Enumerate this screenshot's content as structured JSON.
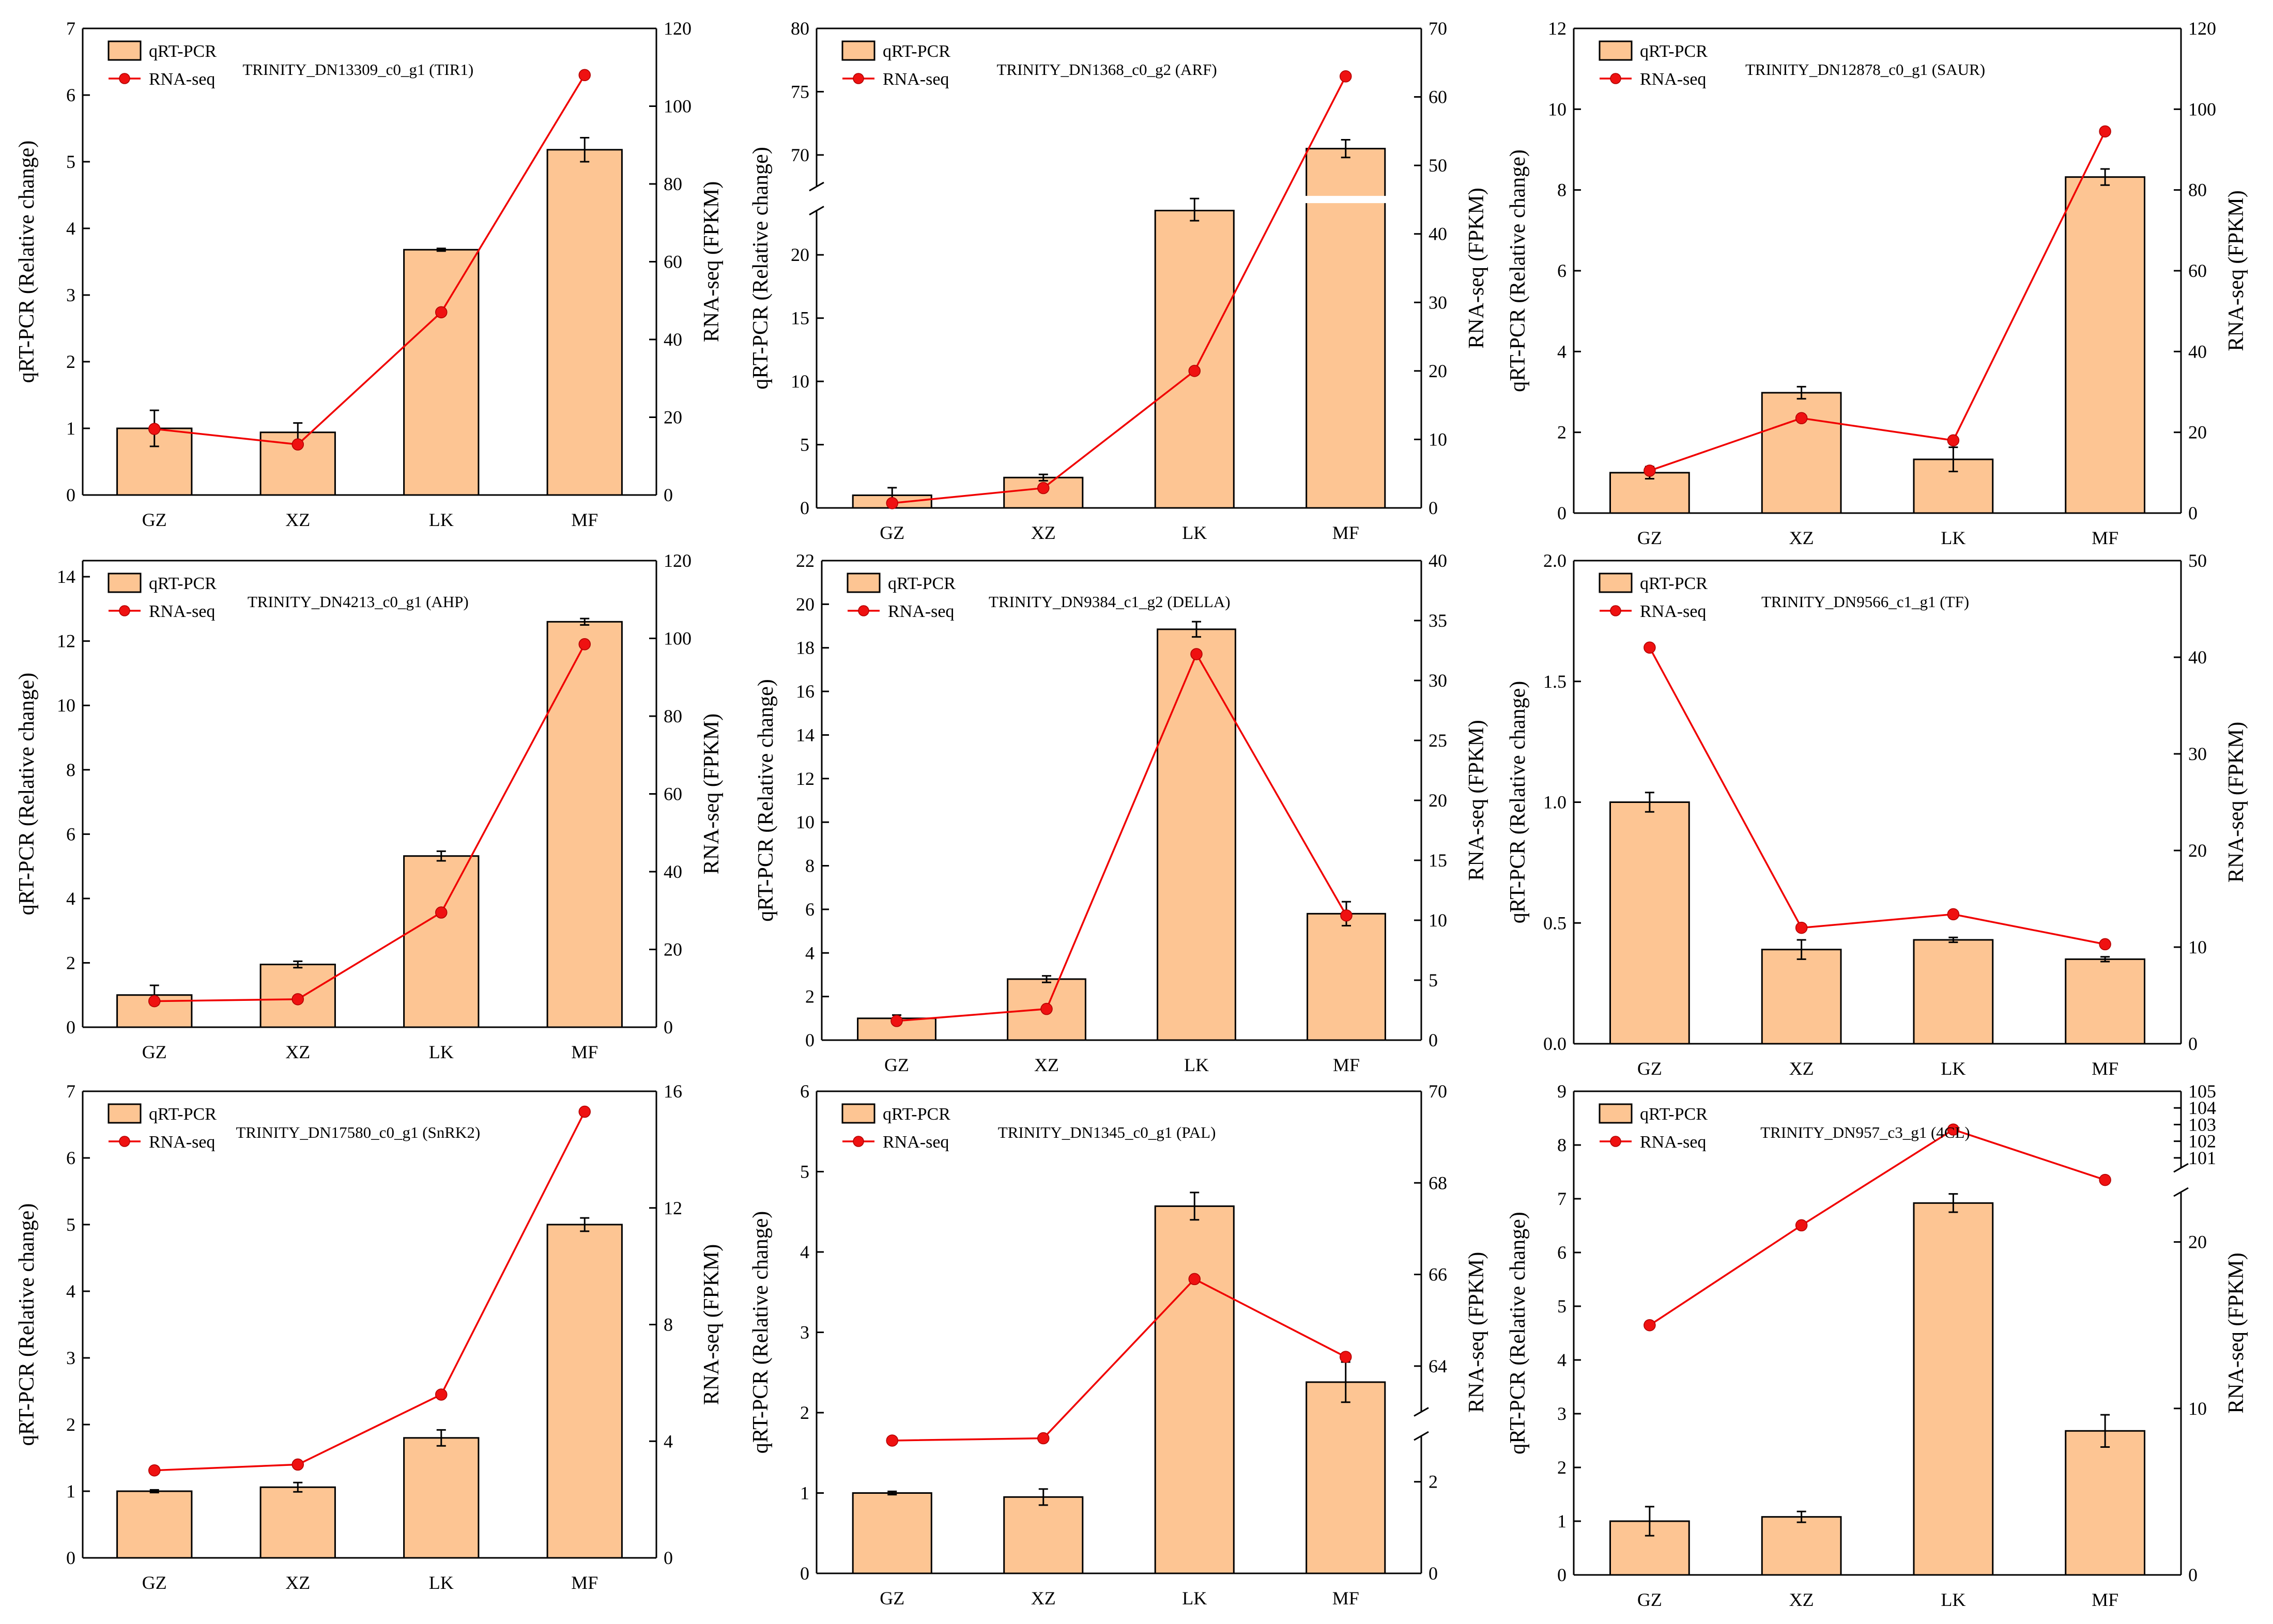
{
  "figure": {
    "legend_bar": "qRT-PCR",
    "legend_line": "RNA-seq"
  },
  "chart_data": [
    {
      "type": "bar+line",
      "title": "TRINITY_DN13309_c0_g1 (TIR1)",
      "categories": [
        "GZ",
        "XZ",
        "LK",
        "MF"
      ],
      "ylabel": "qRT-PCR (Relative change)",
      "y2label": "RNA-seq (FPKM)",
      "ylim": [
        0,
        7
      ],
      "yticks": [
        0,
        1,
        2,
        3,
        4,
        5,
        6,
        7
      ],
      "y2lim": [
        0,
        120
      ],
      "y2ticks": [
        0,
        20,
        40,
        60,
        80,
        100,
        120
      ],
      "series": [
        {
          "name": "qRT-PCR",
          "axis": "left",
          "kind": "bar",
          "values": [
            1.0,
            0.94,
            3.68,
            5.18
          ],
          "errors": [
            0.27,
            0.14,
            0.02,
            0.18
          ]
        },
        {
          "name": "RNA-seq",
          "axis": "right",
          "kind": "line",
          "values": [
            17,
            13,
            47,
            108
          ]
        }
      ]
    },
    {
      "type": "bar+line",
      "title": "TRINITY_DN1368_c0_g2 (ARF)",
      "categories": [
        "GZ",
        "XZ",
        "LK",
        "MF"
      ],
      "ylabel": "qRT-PCR (Relative change)",
      "y2label": "RNA-seq (FPKM)",
      "ylim": [
        0,
        80
      ],
      "yticks": [
        0,
        5,
        10,
        15,
        20,
        70,
        75,
        80
      ],
      "y_break": [
        23.5,
        67.5
      ],
      "y2lim": [
        0,
        70
      ],
      "y2ticks": [
        0,
        10,
        20,
        30,
        40,
        50,
        60,
        70
      ],
      "series": [
        {
          "name": "qRT-PCR",
          "axis": "left",
          "kind": "bar",
          "values": [
            1.0,
            2.4,
            23.5,
            70.5
          ],
          "errors": [
            0.6,
            0.25,
            0.8,
            0.7
          ]
        },
        {
          "name": "RNA-seq",
          "axis": "right",
          "kind": "line",
          "values": [
            0.7,
            2.9,
            20,
            63
          ]
        }
      ]
    },
    {
      "type": "bar+line",
      "title": "TRINITY_DN12878_c0_g1 (SAUR)",
      "categories": [
        "GZ",
        "XZ",
        "LK",
        "MF"
      ],
      "ylabel": "qRT-PCR (Relative change)",
      "y2label": "RNA-seq (FPKM)",
      "ylim": [
        0,
        12
      ],
      "yticks": [
        0,
        2,
        4,
        6,
        8,
        10,
        12
      ],
      "y2lim": [
        0,
        120
      ],
      "y2ticks": [
        0,
        20,
        40,
        60,
        80,
        100,
        120
      ],
      "series": [
        {
          "name": "qRT-PCR",
          "axis": "left",
          "kind": "bar",
          "values": [
            1.0,
            2.98,
            1.33,
            8.32
          ],
          "errors": [
            0.15,
            0.15,
            0.3,
            0.2
          ]
        },
        {
          "name": "RNA-seq",
          "axis": "right",
          "kind": "line",
          "values": [
            10.5,
            23.5,
            18,
            94.5
          ]
        }
      ]
    },
    {
      "type": "bar+line",
      "title": "TRINITY_DN4213_c0_g1 (AHP)",
      "categories": [
        "GZ",
        "XZ",
        "LK",
        "MF"
      ],
      "ylabel": "qRT-PCR (Relative change)",
      "y2label": "RNA-seq (FPKM)",
      "ylim": [
        0,
        14.5
      ],
      "yticks": [
        0,
        2,
        4,
        6,
        8,
        10,
        12,
        14
      ],
      "y2lim": [
        0,
        120
      ],
      "y2ticks": [
        0,
        20,
        40,
        60,
        80,
        100,
        120
      ],
      "series": [
        {
          "name": "qRT-PCR",
          "axis": "left",
          "kind": "bar",
          "values": [
            1.0,
            1.95,
            5.32,
            12.6
          ],
          "errors": [
            0.3,
            0.1,
            0.15,
            0.1
          ]
        },
        {
          "name": "RNA-seq",
          "axis": "right",
          "kind": "line",
          "values": [
            6.7,
            7.2,
            29.5,
            98.5
          ]
        }
      ]
    },
    {
      "type": "bar+line",
      "title": "TRINITY_DN9384_c1_g2 (DELLA)",
      "categories": [
        "GZ",
        "XZ",
        "LK",
        "MF"
      ],
      "ylabel": "qRT-PCR (Relative change)",
      "y2label": "RNA-seq (FPKM)",
      "ylim": [
        0,
        22
      ],
      "yticks": [
        0,
        2,
        4,
        6,
        8,
        10,
        12,
        14,
        16,
        18,
        20,
        22
      ],
      "y2lim": [
        0,
        40
      ],
      "y2ticks": [
        0,
        5,
        10,
        15,
        20,
        25,
        30,
        35,
        40
      ],
      "series": [
        {
          "name": "qRT-PCR",
          "axis": "left",
          "kind": "bar",
          "values": [
            1.0,
            2.8,
            18.85,
            5.8
          ],
          "errors": [
            0.15,
            0.15,
            0.35,
            0.55
          ]
        },
        {
          "name": "RNA-seq",
          "axis": "right",
          "kind": "line",
          "values": [
            1.6,
            2.6,
            32.2,
            10.4
          ]
        }
      ]
    },
    {
      "type": "bar+line",
      "title": "TRINITY_DN9566_c1_g1 (TF)",
      "categories": [
        "GZ",
        "XZ",
        "LK",
        "MF"
      ],
      "ylabel": "qRT-PCR (Relative change)",
      "y2label": "RNA-seq (FPKM)",
      "ylim": [
        0,
        2.0
      ],
      "yticks": [
        0.0,
        0.5,
        1.0,
        1.5,
        2.0
      ],
      "y2lim": [
        0,
        50
      ],
      "y2ticks": [
        0,
        10,
        20,
        30,
        40,
        50
      ],
      "series": [
        {
          "name": "qRT-PCR",
          "axis": "left",
          "kind": "bar",
          "values": [
            1.0,
            0.39,
            0.43,
            0.35
          ],
          "errors": [
            0.04,
            0.04,
            0.01,
            0.01
          ]
        },
        {
          "name": "RNA-seq",
          "axis": "right",
          "kind": "line",
          "values": [
            41,
            12,
            13.4,
            10.3
          ]
        }
      ]
    },
    {
      "type": "bar+line",
      "title": "TRINITY_DN17580_c0_g1 (SnRK2)",
      "categories": [
        "GZ",
        "XZ",
        "LK",
        "MF"
      ],
      "ylabel": "qRT-PCR (Relative change)",
      "y2label": "RNA-seq (FPKM)",
      "ylim": [
        0,
        7
      ],
      "yticks": [
        0,
        1,
        2,
        3,
        4,
        5,
        6,
        7
      ],
      "y2lim": [
        0,
        16
      ],
      "y2ticks": [
        0,
        4,
        8,
        12,
        16
      ],
      "series": [
        {
          "name": "qRT-PCR",
          "axis": "left",
          "kind": "bar",
          "values": [
            1.0,
            1.06,
            1.8,
            5.0
          ],
          "errors": [
            0.02,
            0.07,
            0.12,
            0.1
          ]
        },
        {
          "name": "RNA-seq",
          "axis": "right",
          "kind": "line",
          "values": [
            3.0,
            3.2,
            5.6,
            15.3
          ]
        }
      ]
    },
    {
      "type": "bar+line",
      "title": "TRINITY_DN1345_c0_g1 (PAL)",
      "categories": [
        "GZ",
        "XZ",
        "LK",
        "MF"
      ],
      "ylabel": "qRT-PCR (Relative change)",
      "y2label": "RNA-seq (FPKM)",
      "ylim": [
        0,
        6
      ],
      "yticks": [
        0,
        1,
        2,
        3,
        4,
        5,
        6
      ],
      "y2lim": [
        0,
        70
      ],
      "y2ticks": [
        0,
        2,
        64,
        66,
        68,
        70
      ],
      "y2_break": [
        3,
        63
      ],
      "series": [
        {
          "name": "qRT-PCR",
          "axis": "left",
          "kind": "bar",
          "values": [
            1.0,
            0.95,
            4.57,
            2.38
          ],
          "errors": [
            0.02,
            0.1,
            0.17,
            0.25
          ]
        },
        {
          "name": "RNA-seq",
          "axis": "right",
          "kind": "line",
          "values": [
            2.9,
            2.95,
            65.9,
            64.2
          ]
        }
      ]
    },
    {
      "type": "bar+line",
      "title": "TRINITY_DN957_c3_g1 (4CL)",
      "categories": [
        "GZ",
        "XZ",
        "LK",
        "MF"
      ],
      "ylabel": "qRT-PCR (Relative change)",
      "y2label": "RNA-seq (FPKM)",
      "ylim": [
        0,
        9
      ],
      "yticks": [
        0,
        1,
        2,
        3,
        4,
        5,
        6,
        7,
        8,
        9
      ],
      "y2lim": [
        0,
        105
      ],
      "y2ticks": [
        0,
        10,
        20,
        101,
        102,
        103,
        104,
        105
      ],
      "y2_break": [
        23,
        100.4
      ],
      "series": [
        {
          "name": "qRT-PCR",
          "axis": "left",
          "kind": "bar",
          "values": [
            1.0,
            1.08,
            6.92,
            2.68
          ],
          "errors": [
            0.27,
            0.1,
            0.17,
            0.3
          ]
        },
        {
          "name": "RNA-seq",
          "axis": "right",
          "kind": "line",
          "values": [
            15,
            21,
            102.7,
            100.25
          ]
        }
      ]
    }
  ]
}
